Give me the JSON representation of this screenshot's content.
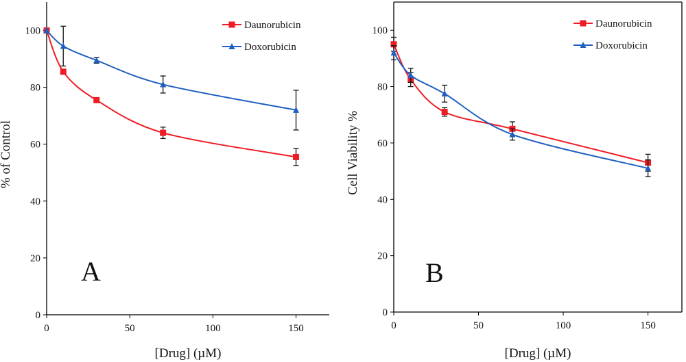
{
  "chart_data": [
    {
      "type": "line",
      "panel_label": "A",
      "xlabel": "[Drug] (µM)",
      "ylabel": "% of Control",
      "xlim": [
        0,
        170
      ],
      "ylim": [
        0,
        110
      ],
      "xticks": [
        0,
        50,
        100,
        150
      ],
      "yticks": [
        0,
        20,
        40,
        60,
        80,
        100
      ],
      "grid": false,
      "legend_position": "top-right",
      "series": [
        {
          "name": "Daunorubicin",
          "color": "#ee1c25",
          "marker": "square",
          "x": [
            0,
            10,
            30,
            70,
            150
          ],
          "y": [
            100,
            85.5,
            75.5,
            64,
            55.5
          ],
          "error": [
            0,
            0,
            0,
            2,
            3
          ]
        },
        {
          "name": "Doxorubicin",
          "color": "#1f5fbf",
          "marker": "triangle",
          "x": [
            0,
            10,
            30,
            70,
            150
          ],
          "y": [
            100,
            94.5,
            89.5,
            81,
            72
          ],
          "error": [
            0,
            7,
            1,
            3,
            7
          ]
        }
      ]
    },
    {
      "type": "line",
      "panel_label": "B",
      "xlabel": "[Drug] (µM)",
      "ylabel": "Cell Viability %",
      "xlim": [
        0,
        170
      ],
      "ylim": [
        0,
        110
      ],
      "xticks": [
        0,
        50,
        100,
        150
      ],
      "yticks": [
        0,
        20,
        40,
        60,
        80,
        100
      ],
      "grid": false,
      "legend_position": "top-right",
      "series": [
        {
          "name": "Daunorubicin",
          "color": "#ee1c25",
          "marker": "square",
          "x": [
            0,
            10,
            30,
            70,
            150
          ],
          "y": [
            95,
            82.5,
            71,
            65,
            53
          ],
          "error": [
            2.5,
            2.5,
            1.5,
            2.5,
            3
          ]
        },
        {
          "name": "Doxorubicin",
          "color": "#1f5fbf",
          "marker": "triangle",
          "x": [
            0,
            10,
            30,
            70,
            150
          ],
          "y": [
            92,
            84,
            77.5,
            63,
            51
          ],
          "error": [
            2.5,
            2.5,
            3,
            2,
            3
          ]
        }
      ]
    }
  ]
}
